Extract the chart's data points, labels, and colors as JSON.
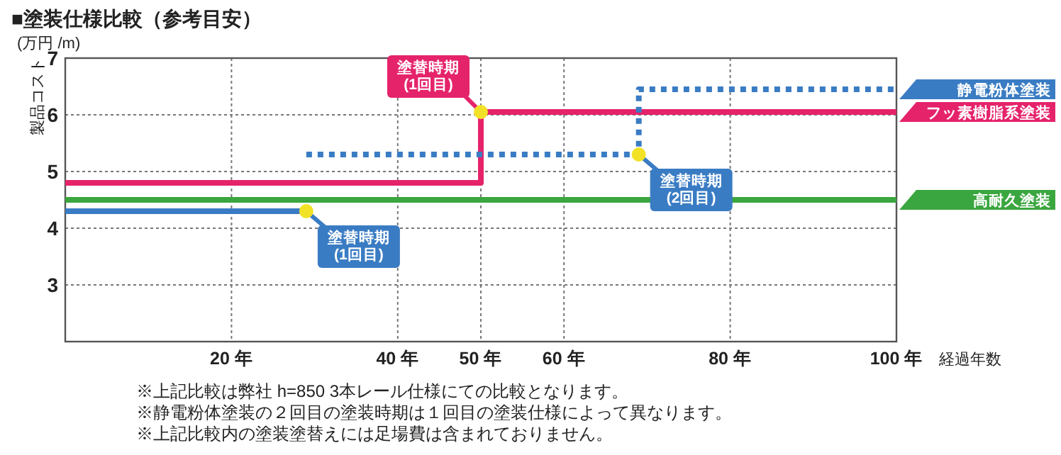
{
  "chart_data": {
    "type": "step",
    "title": "■塗装仕様比較（参考目安）",
    "ylabel": "製品コスト",
    "xlabel": "経過年数",
    "xlim": [
      0,
      100
    ],
    "ylim": [
      2,
      7
    ],
    "xticks": [
      {
        "value": 20,
        "label": "20 年"
      },
      {
        "value": 40,
        "label": "40 年"
      },
      {
        "value": 50,
        "label": "50 年"
      },
      {
        "value": 60,
        "label": "60 年"
      },
      {
        "value": 80,
        "label": "80 年"
      },
      {
        "value": 100,
        "label": "100 年"
      }
    ],
    "yticks": [
      3,
      4,
      5,
      6,
      7
    ],
    "grid": true,
    "series": [
      {
        "color": "#3a7cc3",
        "line_style": "solid",
        "x": [
          0,
          29
        ],
        "values": [
          4.3,
          4.3
        ]
      },
      {
        "name": "静電粉体塗装",
        "color": "#3a7cc3",
        "line_style": "dotted",
        "x": [
          29,
          69,
          100
        ],
        "values": [
          5.3,
          6.45,
          6.45
        ]
      },
      {
        "name": "フッ素樹脂系塗装",
        "color": "#e5236b",
        "line_style": "solid",
        "x": [
          0,
          50,
          100
        ],
        "values": [
          4.8,
          6.05,
          6.05
        ]
      },
      {
        "name": "高耐久塗装",
        "color": "#3aa63f",
        "line_style": "solid",
        "x": [
          0,
          100
        ],
        "values": [
          4.5,
          4.5
        ]
      }
    ],
    "annotations": [
      "(万円 /m)",
      {
        "text": "塗替時期\n(1回目)",
        "x": 29,
        "y": 4.3
      },
      {
        "text": "塗替時期\n(1回目)",
        "x": 50,
        "y": 6.05
      },
      {
        "text": "塗替時期\n(2回目)",
        "x": 69,
        "y": 5.3
      },
      "※上記比較は弊社 h=850 3本レール仕様にての比較となります。",
      "※静電粉体塗装の２回目の塗装時期は１回目の塗装仕様によって異なります。",
      "※上記比較内の塗装塗替えには足場費は含まれておりません。"
    ]
  }
}
